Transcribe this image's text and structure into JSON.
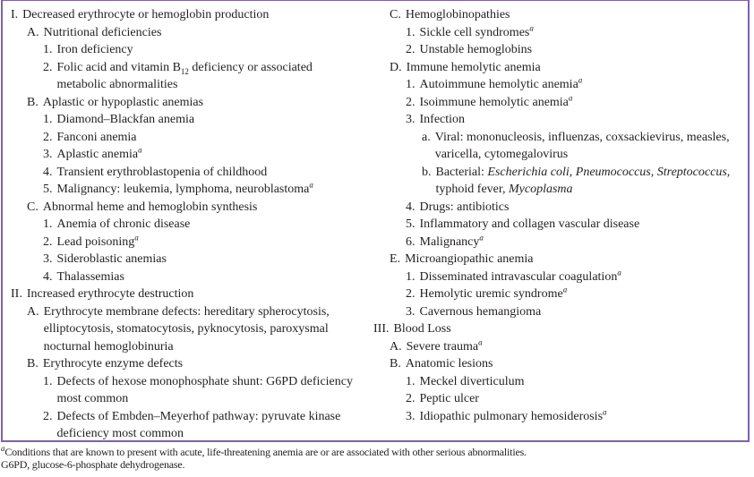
{
  "colors": {
    "border": "#7d62a8",
    "text": "#231f20"
  },
  "left_column": [
    {
      "level": 0,
      "label": "I.",
      "text": [
        {
          "t": "Decreased erythrocyte or hemoglobin production"
        }
      ]
    },
    {
      "level": 1,
      "label": "A.",
      "text": [
        {
          "t": "Nutritional deficiencies"
        }
      ]
    },
    {
      "level": 2,
      "label": "1.",
      "text": [
        {
          "t": "Iron deficiency"
        }
      ]
    },
    {
      "level": 2,
      "label": "2.",
      "text": [
        {
          "t": "Folic acid and vitamin B"
        },
        {
          "t": "12",
          "sub": true
        },
        {
          "t": " deficiency or associated metabolic abnormalities"
        }
      ]
    },
    {
      "level": 1,
      "label": "B.",
      "text": [
        {
          "t": "Aplastic or hypoplastic anemias"
        }
      ]
    },
    {
      "level": 2,
      "label": "1.",
      "text": [
        {
          "t": "Diamond–Blackfan anemia"
        }
      ]
    },
    {
      "level": 2,
      "label": "2.",
      "text": [
        {
          "t": "Fanconi anemia"
        }
      ]
    },
    {
      "level": 2,
      "label": "3.",
      "text": [
        {
          "t": "Aplastic anemia"
        },
        {
          "t": "a",
          "sup": true
        }
      ]
    },
    {
      "level": 2,
      "label": "4.",
      "text": [
        {
          "t": "Transient erythroblastopenia of childhood"
        }
      ]
    },
    {
      "level": 2,
      "label": "5.",
      "text": [
        {
          "t": "Malignancy: leukemia, lymphoma, neuroblastoma"
        },
        {
          "t": "a",
          "sup": true
        }
      ]
    },
    {
      "level": 1,
      "label": "C.",
      "text": [
        {
          "t": "Abnormal heme and hemoglobin synthesis"
        }
      ]
    },
    {
      "level": 2,
      "label": "1.",
      "text": [
        {
          "t": "Anemia of chronic disease"
        }
      ]
    },
    {
      "level": 2,
      "label": "2.",
      "text": [
        {
          "t": "Lead poisoning"
        },
        {
          "t": "a",
          "sup": true
        }
      ]
    },
    {
      "level": 2,
      "label": "3.",
      "text": [
        {
          "t": "Sideroblastic anemias"
        }
      ]
    },
    {
      "level": 2,
      "label": "4.",
      "text": [
        {
          "t": "Thalassemias"
        }
      ]
    },
    {
      "level": 0,
      "label": "II.",
      "text": [
        {
          "t": "Increased erythrocyte destruction"
        }
      ]
    },
    {
      "level": 1,
      "label": "A.",
      "text": [
        {
          "t": "Erythrocyte membrane defects: hereditary spherocytosis, elliptocytosis, stomatocytosis, pyknocytosis, paroxysmal nocturnal hemoglobinuria"
        }
      ]
    },
    {
      "level": 1,
      "label": "B.",
      "text": [
        {
          "t": "Erythrocyte enzyme defects"
        }
      ]
    },
    {
      "level": 2,
      "label": "1.",
      "text": [
        {
          "t": "Defects of hexose monophosphate shunt: G6PD deficiency most common"
        }
      ]
    },
    {
      "level": 2,
      "label": "2.",
      "text": [
        {
          "t": "Defects of Embden–Meyerhof pathway: pyruvate kinase deficiency most common"
        }
      ]
    }
  ],
  "right_column": [
    {
      "level": 1,
      "label": "C.",
      "text": [
        {
          "t": "Hemoglobinopathies"
        }
      ]
    },
    {
      "level": 2,
      "label": "1.",
      "text": [
        {
          "t": "Sickle cell syndromes"
        },
        {
          "t": "a",
          "sup": true
        }
      ]
    },
    {
      "level": 2,
      "label": "2.",
      "text": [
        {
          "t": "Unstable hemoglobins"
        }
      ]
    },
    {
      "level": 1,
      "label": "D.",
      "text": [
        {
          "t": "Immune hemolytic anemia"
        }
      ]
    },
    {
      "level": 2,
      "label": "1.",
      "text": [
        {
          "t": "Autoimmune hemolytic anemia"
        },
        {
          "t": "a",
          "sup": true
        }
      ]
    },
    {
      "level": 2,
      "label": "2.",
      "text": [
        {
          "t": "Isoimmune hemolytic anemia"
        },
        {
          "t": "a",
          "sup": true
        }
      ]
    },
    {
      "level": 2,
      "label": "3.",
      "text": [
        {
          "t": "Infection"
        }
      ]
    },
    {
      "level": 3,
      "label": "a.",
      "text": [
        {
          "t": "Viral: mononucleosis, influenzas, coxsackievirus, measles, varicella, cytomegalovirus"
        }
      ]
    },
    {
      "level": 3,
      "label": "b.",
      "text": [
        {
          "t": "Bacterial: "
        },
        {
          "t": "Escherichia coli, Pneumococcus, Streptococcus",
          "i": true
        },
        {
          "t": ", typhoid fever, "
        },
        {
          "t": "Mycoplasma",
          "i": true
        }
      ]
    },
    {
      "level": 2,
      "label": "4.",
      "text": [
        {
          "t": "Drugs: antibiotics"
        }
      ]
    },
    {
      "level": 2,
      "label": "5.",
      "text": [
        {
          "t": "Inflammatory and collagen vascular disease"
        }
      ]
    },
    {
      "level": 2,
      "label": "6.",
      "text": [
        {
          "t": "Malignancy"
        },
        {
          "t": "a",
          "sup": true
        }
      ]
    },
    {
      "level": 1,
      "label": "E.",
      "text": [
        {
          "t": "Microangiopathic anemia"
        }
      ]
    },
    {
      "level": 2,
      "label": "1.",
      "text": [
        {
          "t": "Disseminated intravascular coagulation"
        },
        {
          "t": "a",
          "sup": true
        }
      ]
    },
    {
      "level": 2,
      "label": "2.",
      "text": [
        {
          "t": "Hemolytic uremic syndrome"
        },
        {
          "t": "a",
          "sup": true
        }
      ]
    },
    {
      "level": 2,
      "label": "3.",
      "text": [
        {
          "t": "Cavernous hemangioma"
        }
      ]
    },
    {
      "level": 0,
      "label": "III.",
      "text": [
        {
          "t": "Blood Loss"
        }
      ]
    },
    {
      "level": 1,
      "label": "A.",
      "text": [
        {
          "t": "Severe trauma"
        },
        {
          "t": "a",
          "sup": true
        }
      ]
    },
    {
      "level": 1,
      "label": "B.",
      "text": [
        {
          "t": "Anatomic lesions"
        }
      ]
    },
    {
      "level": 2,
      "label": "1.",
      "text": [
        {
          "t": "Meckel diverticulum"
        }
      ]
    },
    {
      "level": 2,
      "label": "2.",
      "text": [
        {
          "t": "Peptic ulcer"
        }
      ]
    },
    {
      "level": 2,
      "label": "3.",
      "text": [
        {
          "t": "Idiopathic pulmonary hemosiderosis"
        },
        {
          "t": "a",
          "sup": true
        }
      ]
    }
  ],
  "footnotes": {
    "marker": "a",
    "note_a": "Conditions that are known to present with acute, life-threatening anemia are or are associated with other serious abnormalities.",
    "abbrev": "G6PD, glucose-6-phosphate dehydrogenase."
  }
}
